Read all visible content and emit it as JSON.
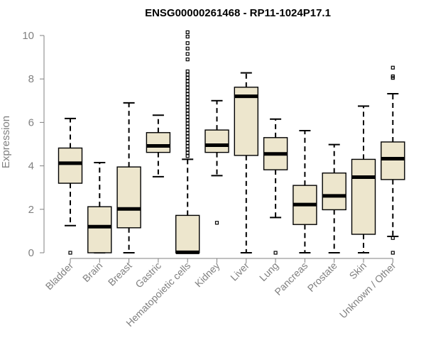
{
  "chart_data": {
    "type": "boxplot",
    "title": "ENSG00000261468 - RP11-1024P17.1",
    "xlabel": "",
    "ylabel": "Expression",
    "ylim": [
      0,
      10.2
    ],
    "yticks": [
      0,
      2,
      4,
      6,
      8,
      10
    ],
    "box_fill": "#ede6cd",
    "categories": [
      "Bladder",
      "Brain",
      "Breast",
      "Gastric",
      "Hematopoietic cells",
      "Kidney",
      "Liver",
      "Lung",
      "Pancreas",
      "Prostate",
      "Skin",
      "Unknown / Other"
    ],
    "boxes": [
      {
        "name": "Bladder",
        "whisker_low": 1.25,
        "q1": 3.2,
        "median": 4.12,
        "q3": 4.82,
        "whisker_high": 6.18,
        "outliers": [
          0.0
        ]
      },
      {
        "name": "Brain",
        "whisker_low": 0.0,
        "q1": 0.0,
        "median": 1.2,
        "q3": 2.12,
        "whisker_high": 4.15,
        "outliers": []
      },
      {
        "name": "Breast",
        "whisker_low": 0.0,
        "q1": 1.15,
        "median": 2.02,
        "q3": 3.95,
        "whisker_high": 6.9,
        "outliers": []
      },
      {
        "name": "Gastric",
        "whisker_low": 3.5,
        "q1": 4.62,
        "median": 4.92,
        "q3": 5.53,
        "whisker_high": 6.33,
        "outliers": []
      },
      {
        "name": "Hematopoietic cells",
        "whisker_low": 0.0,
        "q1": 0.0,
        "median": 0.02,
        "q3": 1.72,
        "whisker_high": 4.3,
        "outliers": [
          4.45,
          4.6,
          4.75,
          4.9,
          5.05,
          5.2,
          5.35,
          5.5,
          5.65,
          5.8,
          5.95,
          6.1,
          6.25,
          6.4,
          6.55,
          6.7,
          6.85,
          7.0,
          7.15,
          7.3,
          7.45,
          7.6,
          7.75,
          7.9,
          8.05,
          8.2,
          8.35,
          8.9,
          9.15,
          9.4,
          9.65,
          9.95,
          10.15
        ]
      },
      {
        "name": "Kidney",
        "whisker_low": 3.55,
        "q1": 4.62,
        "median": 4.95,
        "q3": 5.65,
        "whisker_high": 7.0,
        "outliers": [
          1.38
        ]
      },
      {
        "name": "Liver",
        "whisker_low": 0.0,
        "q1": 4.48,
        "median": 7.2,
        "q3": 7.62,
        "whisker_high": 8.28,
        "outliers": []
      },
      {
        "name": "Lung",
        "whisker_low": 1.62,
        "q1": 3.82,
        "median": 4.55,
        "q3": 5.3,
        "whisker_high": 6.15,
        "outliers": [
          0.0
        ]
      },
      {
        "name": "Pancreas",
        "whisker_low": 0.0,
        "q1": 1.3,
        "median": 2.22,
        "q3": 3.1,
        "whisker_high": 5.62,
        "outliers": []
      },
      {
        "name": "Prostate",
        "whisker_low": 0.0,
        "q1": 1.98,
        "median": 2.62,
        "q3": 3.67,
        "whisker_high": 4.98,
        "outliers": []
      },
      {
        "name": "Skin",
        "whisker_low": 0.0,
        "q1": 0.85,
        "median": 3.48,
        "q3": 4.3,
        "whisker_high": 6.75,
        "outliers": []
      },
      {
        "name": "Unknown / Other",
        "whisker_low": 0.75,
        "q1": 3.37,
        "median": 4.33,
        "q3": 5.1,
        "whisker_high": 7.32,
        "outliers": [
          0.0,
          0.68,
          8.05,
          8.12,
          8.52
        ]
      }
    ]
  }
}
